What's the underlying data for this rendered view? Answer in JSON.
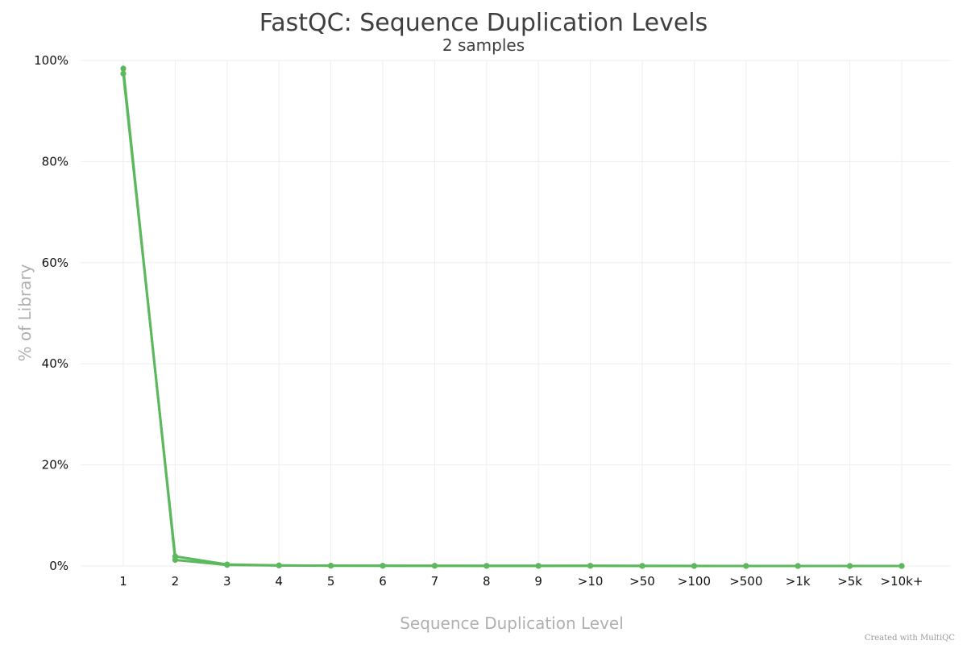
{
  "chart_data": {
    "type": "line",
    "title": "FastQC: Sequence Duplication Levels",
    "subtitle": "2 samples",
    "xlabel": "Sequence Duplication Level",
    "ylabel": "% of Library",
    "categories": [
      "1",
      "2",
      "3",
      "4",
      "5",
      "6",
      "7",
      "8",
      "9",
      ">10",
      ">50",
      ">100",
      ">500",
      ">1k",
      ">5k",
      ">10k+"
    ],
    "ylim": [
      0,
      100
    ],
    "yticks": [
      "0%",
      "20%",
      "40%",
      "60%",
      "80%",
      "100%"
    ],
    "ytick_values": [
      0,
      20,
      40,
      60,
      80,
      100
    ],
    "grid": true,
    "series": [
      {
        "color": "#5cb85c",
        "values": [
          98.4,
          1.2,
          0.2,
          0.1,
          0.05,
          0.04,
          0.03,
          0.02,
          0.02,
          0.03,
          0.01,
          0.0,
          0.0,
          0.0,
          0.0,
          0.0
        ]
      },
      {
        "color": "#5cb85c",
        "values": [
          97.4,
          1.9,
          0.3,
          0.12,
          0.06,
          0.05,
          0.04,
          0.03,
          0.03,
          0.04,
          0.02,
          0.01,
          0.0,
          0.0,
          0.0,
          0.0
        ]
      }
    ]
  },
  "credit": "Created with MultiQC"
}
